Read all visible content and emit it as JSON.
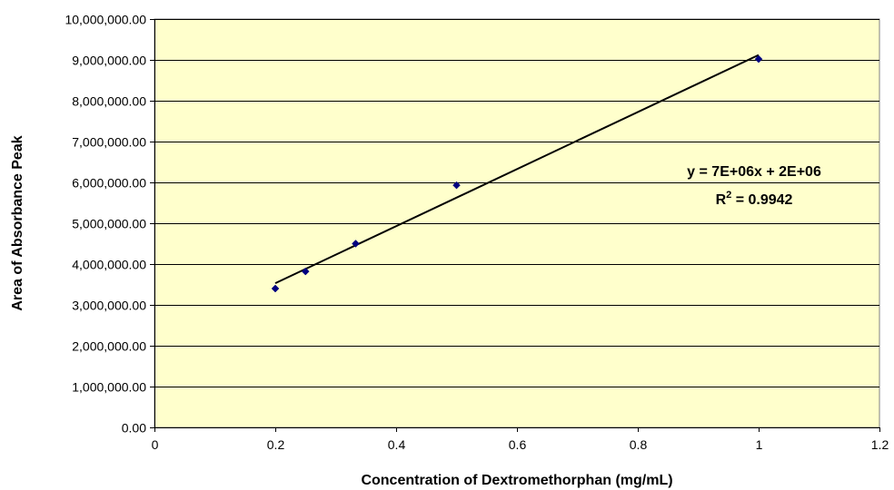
{
  "chart_data": {
    "type": "scatter",
    "title": "",
    "xlabel": "Concentration of Dextromethorphan (mg/mL)",
    "ylabel": "Area of Absorbance Peak",
    "xlim": [
      0,
      1.2
    ],
    "ylim": [
      0,
      10000000
    ],
    "x_ticks": [
      0,
      0.2,
      0.4,
      0.6,
      0.8,
      1,
      1.2
    ],
    "x_tick_labels": [
      "0",
      "0.2",
      "0.4",
      "0.6",
      "0.8",
      "1",
      "1.2"
    ],
    "y_ticks": [
      0,
      1000000,
      2000000,
      3000000,
      4000000,
      5000000,
      6000000,
      7000000,
      8000000,
      9000000,
      10000000
    ],
    "y_tick_labels": [
      "0.00",
      "1,000,000.00",
      "2,000,000.00",
      "3,000,000.00",
      "4,000,000.00",
      "5,000,000.00",
      "6,000,000.00",
      "7,000,000.00",
      "8,000,000.00",
      "9,000,000.00",
      "10,000,000.00"
    ],
    "grid": "horizontal",
    "legend": "none",
    "series": [
      {
        "points": [
          {
            "x": 0.2,
            "y": 3400000
          },
          {
            "x": 0.25,
            "y": 3820000
          },
          {
            "x": 0.333,
            "y": 4500000
          },
          {
            "x": 0.5,
            "y": 5930000
          },
          {
            "x": 1.0,
            "y": 9020000
          }
        ],
        "marker": "diamond",
        "color": "#00007F"
      }
    ],
    "trendline": {
      "type": "linear",
      "x_start": 0.2,
      "y_start": 3530000,
      "x_end": 1.0,
      "y_end": 9120000,
      "color": "#000000"
    },
    "annotation": {
      "equation": "y = 7E+06x + 2E+06",
      "r_squared_prefix": "R",
      "r_squared_sup": "2",
      "r_squared_suffix": " = 0.9942"
    },
    "colors": {
      "plot_background": "#FFFFCC",
      "gridline": "#000000",
      "marker": "#00007F",
      "trendline": "#000000"
    }
  }
}
